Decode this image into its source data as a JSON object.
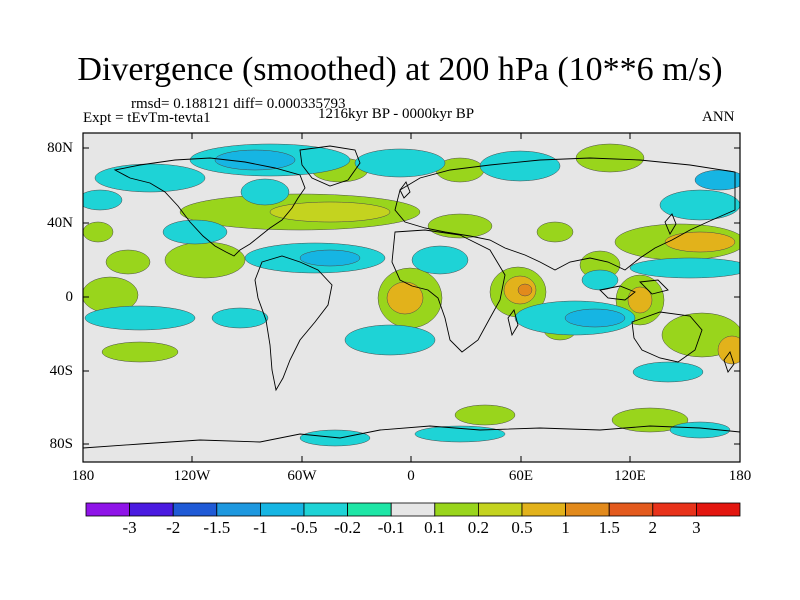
{
  "title": "Divergence (smoothed) at 200 hPa (10**6 m/s)",
  "stats": "rmsd= 0.188121 diff= 0.000335793",
  "experiment": "Expt = tEvTm-tevta1",
  "period": "1216kyr BP - 0000kyr BP",
  "season": "ANN",
  "lat_ticks": [
    "80N",
    "40N",
    "0",
    "40S",
    "80S"
  ],
  "lon_ticks": [
    "180",
    "120W",
    "60W",
    "0",
    "60E",
    "120E",
    "180"
  ],
  "colorbar": {
    "labels": [
      "-3",
      "-2",
      "-1.5",
      "-1",
      "-0.5",
      "-0.2",
      "-0.1",
      "0.1",
      "0.2",
      "0.5",
      "1",
      "1.5",
      "2",
      "3"
    ],
    "colors": [
      "#8f14e8",
      "#4a1ae0",
      "#1f5ad6",
      "#1e98df",
      "#16b5e3",
      "#1ed3d6",
      "#1ee6a6",
      "#e6e6e6",
      "#99d51c",
      "#c4d31f",
      "#e2b21b",
      "#e28a1c",
      "#e35a1d",
      "#e8321a",
      "#e3160f"
    ]
  }
}
